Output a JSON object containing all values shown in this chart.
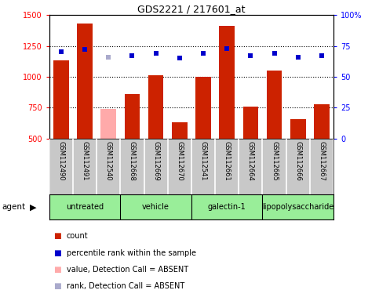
{
  "title": "GDS2221 / 217601_at",
  "samples": [
    "GSM112490",
    "GSM112491",
    "GSM112540",
    "GSM112668",
    "GSM112669",
    "GSM112670",
    "GSM112541",
    "GSM112661",
    "GSM112664",
    "GSM112665",
    "GSM112666",
    "GSM112667"
  ],
  "bar_values": [
    1130,
    1430,
    740,
    860,
    1010,
    630,
    1000,
    1410,
    755,
    1050,
    655,
    775
  ],
  "bar_absent": [
    false,
    false,
    true,
    false,
    false,
    false,
    false,
    false,
    false,
    false,
    false,
    false
  ],
  "rank_values": [
    70,
    72,
    66,
    67,
    69,
    65,
    69,
    73,
    67,
    69,
    66,
    67
  ],
  "rank_absent": [
    false,
    false,
    true,
    false,
    false,
    false,
    false,
    false,
    false,
    false,
    false,
    false
  ],
  "agents": [
    {
      "label": "untreated",
      "start": 0,
      "end": 3
    },
    {
      "label": "vehicle",
      "start": 3,
      "end": 6
    },
    {
      "label": "galectin-1",
      "start": 6,
      "end": 9
    },
    {
      "label": "lipopolysaccharide",
      "start": 9,
      "end": 12
    }
  ],
  "bar_color_normal": "#cc2200",
  "bar_color_absent": "#ffaaaa",
  "rank_color_normal": "#0000cc",
  "rank_color_absent": "#aaaacc",
  "agent_color": "#99ee99",
  "ylim_left": [
    500,
    1500
  ],
  "ylim_right": [
    0,
    100
  ],
  "yticks_left": [
    500,
    750,
    1000,
    1250,
    1500
  ],
  "yticks_right": [
    0,
    25,
    50,
    75,
    100
  ],
  "background_color": "#ffffff"
}
